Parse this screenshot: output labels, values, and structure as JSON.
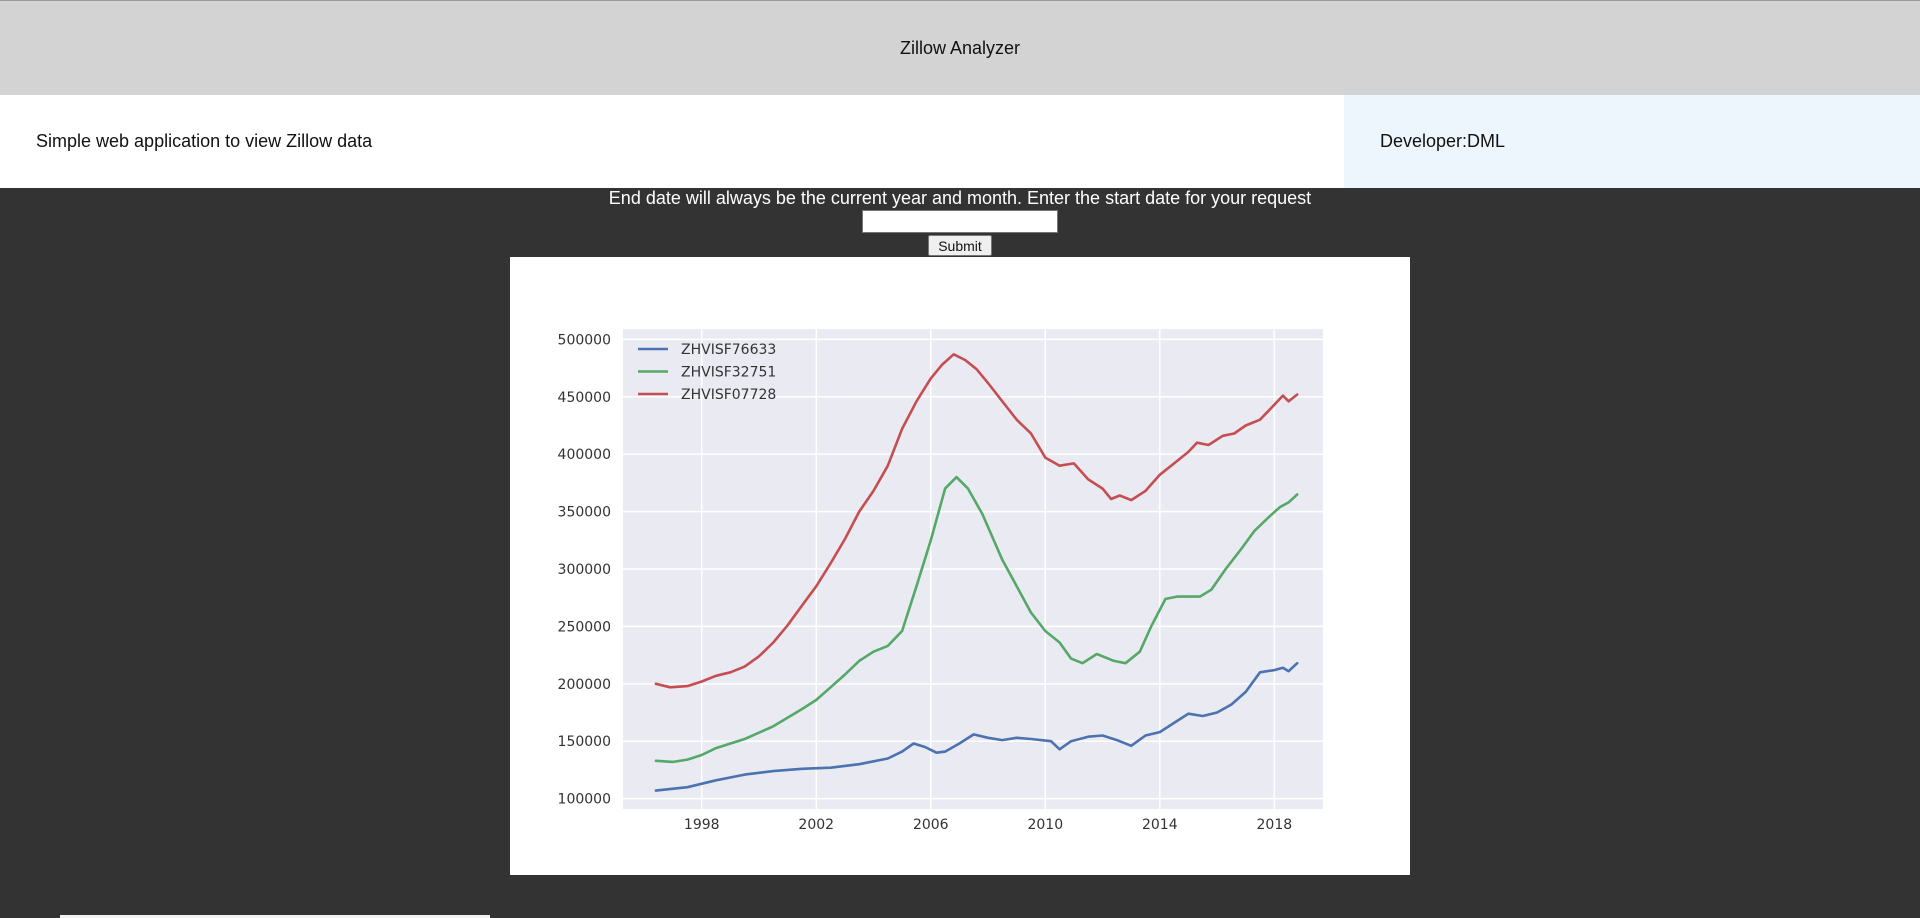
{
  "header": {
    "title": "Zillow Analyzer"
  },
  "subheader": {
    "description": "Simple web application to view Zillow data",
    "developer": "Developer:DML"
  },
  "form": {
    "instructions": "End date will always be the current year and month. Enter the start date for your request",
    "start_date_value": "",
    "start_date_placeholder": "",
    "submit_label": "Submit"
  },
  "chart_data": {
    "type": "line",
    "title": "",
    "xlabel": "",
    "ylabel": "",
    "xlim": [
      1995.25,
      2019.7
    ],
    "ylim": [
      91000,
      509000
    ],
    "x_ticks": [
      1998,
      2002,
      2006,
      2010,
      2014,
      2018
    ],
    "x_tick_labels": [
      "1998",
      "2002",
      "2006",
      "2010",
      "2014",
      "2018"
    ],
    "y_ticks": [
      100000,
      150000,
      200000,
      250000,
      300000,
      350000,
      400000,
      450000,
      500000
    ],
    "y_tick_labels": [
      "100000",
      "150000",
      "200000",
      "250000",
      "300000",
      "350000",
      "400000",
      "450000",
      "500000"
    ],
    "grid": true,
    "legend_position": "top-left",
    "background_color": "#eaeaf2",
    "series": [
      {
        "name": "ZHVISF76633",
        "color": "#4c72b0",
        "points": [
          [
            1996.4,
            107000
          ],
          [
            1997.5,
            110000
          ],
          [
            1998.5,
            116000
          ],
          [
            1999.5,
            121000
          ],
          [
            2000.5,
            124000
          ],
          [
            2001.5,
            126000
          ],
          [
            2002.5,
            127000
          ],
          [
            2003.5,
            130000
          ],
          [
            2004.5,
            135000
          ],
          [
            2005.0,
            141000
          ],
          [
            2005.4,
            148000
          ],
          [
            2005.8,
            145000
          ],
          [
            2006.2,
            140000
          ],
          [
            2006.5,
            141000
          ],
          [
            2007.0,
            148000
          ],
          [
            2007.5,
            156000
          ],
          [
            2008.0,
            153000
          ],
          [
            2008.5,
            151000
          ],
          [
            2009.0,
            153000
          ],
          [
            2009.5,
            152000
          ],
          [
            2010.2,
            150000
          ],
          [
            2010.5,
            143000
          ],
          [
            2010.9,
            150000
          ],
          [
            2011.5,
            154000
          ],
          [
            2012.0,
            155000
          ],
          [
            2012.5,
            151000
          ],
          [
            2013.0,
            146000
          ],
          [
            2013.5,
            155000
          ],
          [
            2014.0,
            158000
          ],
          [
            2014.5,
            166000
          ],
          [
            2015.0,
            174000
          ],
          [
            2015.5,
            172000
          ],
          [
            2016.0,
            175000
          ],
          [
            2016.5,
            182000
          ],
          [
            2017.0,
            193000
          ],
          [
            2017.5,
            210000
          ],
          [
            2018.0,
            212000
          ],
          [
            2018.3,
            214000
          ],
          [
            2018.5,
            211000
          ],
          [
            2018.8,
            218000
          ]
        ]
      },
      {
        "name": "ZHVISF32751",
        "color": "#55a868",
        "points": [
          [
            1996.4,
            133000
          ],
          [
            1997.0,
            132000
          ],
          [
            1997.5,
            134000
          ],
          [
            1998.0,
            138000
          ],
          [
            1998.5,
            144000
          ],
          [
            1999.5,
            152000
          ],
          [
            2000.5,
            163000
          ],
          [
            2001.5,
            178000
          ],
          [
            2002.0,
            186000
          ],
          [
            2002.5,
            197000
          ],
          [
            2003.0,
            208000
          ],
          [
            2003.5,
            220000
          ],
          [
            2004.0,
            228000
          ],
          [
            2004.5,
            233000
          ],
          [
            2005.0,
            246000
          ],
          [
            2005.5,
            285000
          ],
          [
            2006.0,
            325000
          ],
          [
            2006.5,
            370000
          ],
          [
            2006.9,
            380000
          ],
          [
            2007.3,
            370000
          ],
          [
            2007.8,
            348000
          ],
          [
            2008.5,
            308000
          ],
          [
            2009.0,
            285000
          ],
          [
            2009.5,
            262000
          ],
          [
            2010.0,
            246000
          ],
          [
            2010.5,
            236000
          ],
          [
            2010.9,
            222000
          ],
          [
            2011.3,
            218000
          ],
          [
            2011.8,
            226000
          ],
          [
            2012.4,
            220000
          ],
          [
            2012.8,
            218000
          ],
          [
            2013.3,
            228000
          ],
          [
            2013.7,
            250000
          ],
          [
            2014.2,
            274000
          ],
          [
            2014.6,
            276000
          ],
          [
            2015.0,
            276000
          ],
          [
            2015.4,
            276000
          ],
          [
            2015.8,
            282000
          ],
          [
            2016.3,
            300000
          ],
          [
            2016.8,
            316000
          ],
          [
            2017.3,
            333000
          ],
          [
            2017.8,
            345000
          ],
          [
            2018.2,
            354000
          ],
          [
            2018.5,
            358000
          ],
          [
            2018.8,
            365000
          ]
        ]
      },
      {
        "name": "ZHVISF07728",
        "color": "#c44e52",
        "points": [
          [
            1996.4,
            200000
          ],
          [
            1996.9,
            197000
          ],
          [
            1997.5,
            198000
          ],
          [
            1998.0,
            202000
          ],
          [
            1998.5,
            207000
          ],
          [
            1999.0,
            210000
          ],
          [
            1999.5,
            215000
          ],
          [
            2000.0,
            224000
          ],
          [
            2000.5,
            236000
          ],
          [
            2001.0,
            251000
          ],
          [
            2001.5,
            268000
          ],
          [
            2002.0,
            285000
          ],
          [
            2002.5,
            305000
          ],
          [
            2003.0,
            326000
          ],
          [
            2003.5,
            350000
          ],
          [
            2004.0,
            368000
          ],
          [
            2004.5,
            390000
          ],
          [
            2005.0,
            422000
          ],
          [
            2005.5,
            446000
          ],
          [
            2006.0,
            466000
          ],
          [
            2006.4,
            478000
          ],
          [
            2006.8,
            487000
          ],
          [
            2007.2,
            482000
          ],
          [
            2007.6,
            474000
          ],
          [
            2008.0,
            462000
          ],
          [
            2008.5,
            446000
          ],
          [
            2009.0,
            430000
          ],
          [
            2009.5,
            418000
          ],
          [
            2010.0,
            397000
          ],
          [
            2010.5,
            390000
          ],
          [
            2011.0,
            392000
          ],
          [
            2011.5,
            378000
          ],
          [
            2012.0,
            370000
          ],
          [
            2012.3,
            361000
          ],
          [
            2012.6,
            364000
          ],
          [
            2013.0,
            360000
          ],
          [
            2013.5,
            368000
          ],
          [
            2014.0,
            382000
          ],
          [
            2014.5,
            392000
          ],
          [
            2015.0,
            402000
          ],
          [
            2015.3,
            410000
          ],
          [
            2015.7,
            408000
          ],
          [
            2016.2,
            416000
          ],
          [
            2016.6,
            418000
          ],
          [
            2017.0,
            425000
          ],
          [
            2017.5,
            430000
          ],
          [
            2018.0,
            443000
          ],
          [
            2018.3,
            451000
          ],
          [
            2018.5,
            446000
          ],
          [
            2018.8,
            452000
          ]
        ]
      }
    ]
  }
}
